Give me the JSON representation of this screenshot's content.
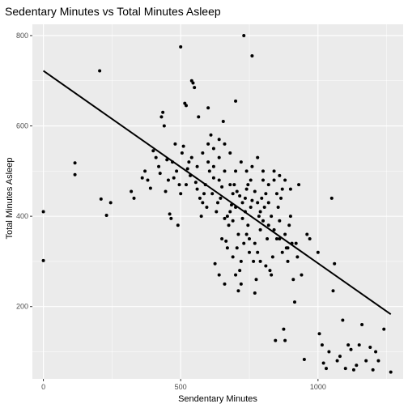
{
  "chart_data": {
    "type": "scatter",
    "title": "Sedentary Minutes vs Total Minutes Asleep",
    "xlabel": "Sendentary Minutes",
    "ylabel": "Total Minutes Asleep",
    "xlim": [
      -40,
      1310
    ],
    "ylim": [
      40,
      825
    ],
    "x_ticks": [
      0,
      500,
      1000
    ],
    "y_ticks": [
      200,
      400,
      600,
      800
    ],
    "grid": true,
    "background": "#ebebeb",
    "grid_color": "#ffffff",
    "point_color": "#000000",
    "line_color": "#000000",
    "trend_line": {
      "x": [
        0,
        1265
      ],
      "y": [
        722,
        183
      ]
    },
    "points": [
      [
        0,
        410
      ],
      [
        0,
        302
      ],
      [
        115,
        518
      ],
      [
        115,
        492
      ],
      [
        205,
        722
      ],
      [
        210,
        438
      ],
      [
        230,
        402
      ],
      [
        245,
        430
      ],
      [
        320,
        455
      ],
      [
        330,
        440
      ],
      [
        360,
        485
      ],
      [
        370,
        500
      ],
      [
        380,
        480
      ],
      [
        390,
        462
      ],
      [
        400,
        545
      ],
      [
        410,
        530
      ],
      [
        420,
        510
      ],
      [
        425,
        495
      ],
      [
        430,
        620
      ],
      [
        435,
        630
      ],
      [
        440,
        600
      ],
      [
        445,
        455
      ],
      [
        450,
        525
      ],
      [
        455,
        480
      ],
      [
        460,
        405
      ],
      [
        465,
        395
      ],
      [
        470,
        520
      ],
      [
        475,
        485
      ],
      [
        480,
        560
      ],
      [
        485,
        500
      ],
      [
        490,
        380
      ],
      [
        495,
        470
      ],
      [
        500,
        775
      ],
      [
        505,
        540
      ],
      [
        510,
        555
      ],
      [
        515,
        650
      ],
      [
        520,
        645
      ],
      [
        525,
        505
      ],
      [
        530,
        520
      ],
      [
        535,
        490
      ],
      [
        540,
        700
      ],
      [
        545,
        695
      ],
      [
        550,
        685
      ],
      [
        555,
        475
      ],
      [
        560,
        460
      ],
      [
        565,
        620
      ],
      [
        570,
        440
      ],
      [
        575,
        400
      ],
      [
        580,
        430
      ],
      [
        585,
        450
      ],
      [
        590,
        470
      ],
      [
        595,
        420
      ],
      [
        600,
        640
      ],
      [
        605,
        500
      ],
      [
        610,
        580
      ],
      [
        615,
        450
      ],
      [
        620,
        485
      ],
      [
        625,
        295
      ],
      [
        630,
        410
      ],
      [
        635,
        430
      ],
      [
        640,
        530
      ],
      [
        645,
        440
      ],
      [
        650,
        465
      ],
      [
        655,
        610
      ],
      [
        660,
        395
      ],
      [
        665,
        345
      ],
      [
        670,
        400
      ],
      [
        675,
        380
      ],
      [
        680,
        410
      ],
      [
        685,
        425
      ],
      [
        690,
        450
      ],
      [
        695,
        470
      ],
      [
        700,
        655
      ],
      [
        705,
        330
      ],
      [
        710,
        235
      ],
      [
        715,
        280
      ],
      [
        720,
        300
      ],
      [
        725,
        430
      ],
      [
        730,
        800
      ],
      [
        735,
        440
      ],
      [
        740,
        460
      ],
      [
        745,
        380
      ],
      [
        750,
        350
      ],
      [
        755,
        420
      ],
      [
        760,
        755
      ],
      [
        765,
        300
      ],
      [
        770,
        230
      ],
      [
        775,
        260
      ],
      [
        780,
        320
      ],
      [
        785,
        400
      ],
      [
        790,
        370
      ],
      [
        795,
        440
      ],
      [
        800,
        500
      ],
      [
        805,
        420
      ],
      [
        810,
        290
      ],
      [
        815,
        350
      ],
      [
        820,
        380
      ],
      [
        825,
        280
      ],
      [
        830,
        270
      ],
      [
        835,
        310
      ],
      [
        840,
        480
      ],
      [
        845,
        125
      ],
      [
        850,
        350
      ],
      [
        855,
        420
      ],
      [
        860,
        390
      ],
      [
        865,
        440
      ],
      [
        870,
        460
      ],
      [
        875,
        150
      ],
      [
        880,
        125
      ],
      [
        885,
        330
      ],
      [
        890,
        300
      ],
      [
        895,
        380
      ],
      [
        900,
        400
      ],
      [
        905,
        340
      ],
      [
        910,
        260
      ],
      [
        915,
        210
      ],
      [
        920,
        340
      ],
      [
        925,
        310
      ],
      [
        930,
        470
      ],
      [
        940,
        270
      ],
      [
        950,
        83
      ],
      [
        960,
        360
      ],
      [
        970,
        350
      ],
      [
        1000,
        320
      ],
      [
        1005,
        140
      ],
      [
        1015,
        115
      ],
      [
        1020,
        75
      ],
      [
        1030,
        63
      ],
      [
        1040,
        100
      ],
      [
        1050,
        440
      ],
      [
        1055,
        235
      ],
      [
        1060,
        295
      ],
      [
        1070,
        80
      ],
      [
        1080,
        90
      ],
      [
        1090,
        170
      ],
      [
        1100,
        63
      ],
      [
        1110,
        115
      ],
      [
        1120,
        105
      ],
      [
        1130,
        60
      ],
      [
        1140,
        70
      ],
      [
        1150,
        115
      ],
      [
        1160,
        160
      ],
      [
        1175,
        80
      ],
      [
        1190,
        110
      ],
      [
        1200,
        60
      ],
      [
        1210,
        100
      ],
      [
        1220,
        80
      ],
      [
        1240,
        150
      ],
      [
        1265,
        55
      ],
      [
        700,
        420
      ],
      [
        715,
        445
      ],
      [
        735,
        410
      ],
      [
        745,
        470
      ],
      [
        760,
        435
      ],
      [
        690,
        390
      ],
      [
        705,
        455
      ],
      [
        725,
        395
      ],
      [
        740,
        360
      ],
      [
        755,
        480
      ],
      [
        770,
        455
      ],
      [
        680,
        470
      ],
      [
        660,
        500
      ],
      [
        640,
        480
      ],
      [
        620,
        510
      ],
      [
        600,
        520
      ],
      [
        580,
        540
      ],
      [
        560,
        510
      ],
      [
        540,
        530
      ],
      [
        520,
        470
      ],
      [
        500,
        450
      ],
      [
        780,
        430
      ],
      [
        790,
        410
      ],
      [
        800,
        390
      ],
      [
        810,
        450
      ],
      [
        820,
        430
      ],
      [
        830,
        400
      ],
      [
        840,
        370
      ],
      [
        850,
        450
      ],
      [
        860,
        350
      ],
      [
        870,
        320
      ],
      [
        880,
        360
      ],
      [
        890,
        330
      ],
      [
        650,
        350
      ],
      [
        670,
        330
      ],
      [
        690,
        310
      ],
      [
        710,
        360
      ],
      [
        730,
        340
      ],
      [
        750,
        320
      ],
      [
        770,
        340
      ],
      [
        790,
        300
      ],
      [
        640,
        270
      ],
      [
        660,
        250
      ],
      [
        700,
        270
      ],
      [
        720,
        250
      ],
      [
        600,
        560
      ],
      [
        620,
        550
      ],
      [
        640,
        570
      ],
      [
        660,
        560
      ],
      [
        680,
        540
      ],
      [
        700,
        500
      ],
      [
        720,
        520
      ],
      [
        740,
        500
      ],
      [
        760,
        510
      ],
      [
        780,
        530
      ],
      [
        800,
        480
      ],
      [
        820,
        470
      ],
      [
        840,
        500
      ],
      [
        860,
        490
      ],
      [
        880,
        480
      ],
      [
        900,
        460
      ]
    ]
  }
}
